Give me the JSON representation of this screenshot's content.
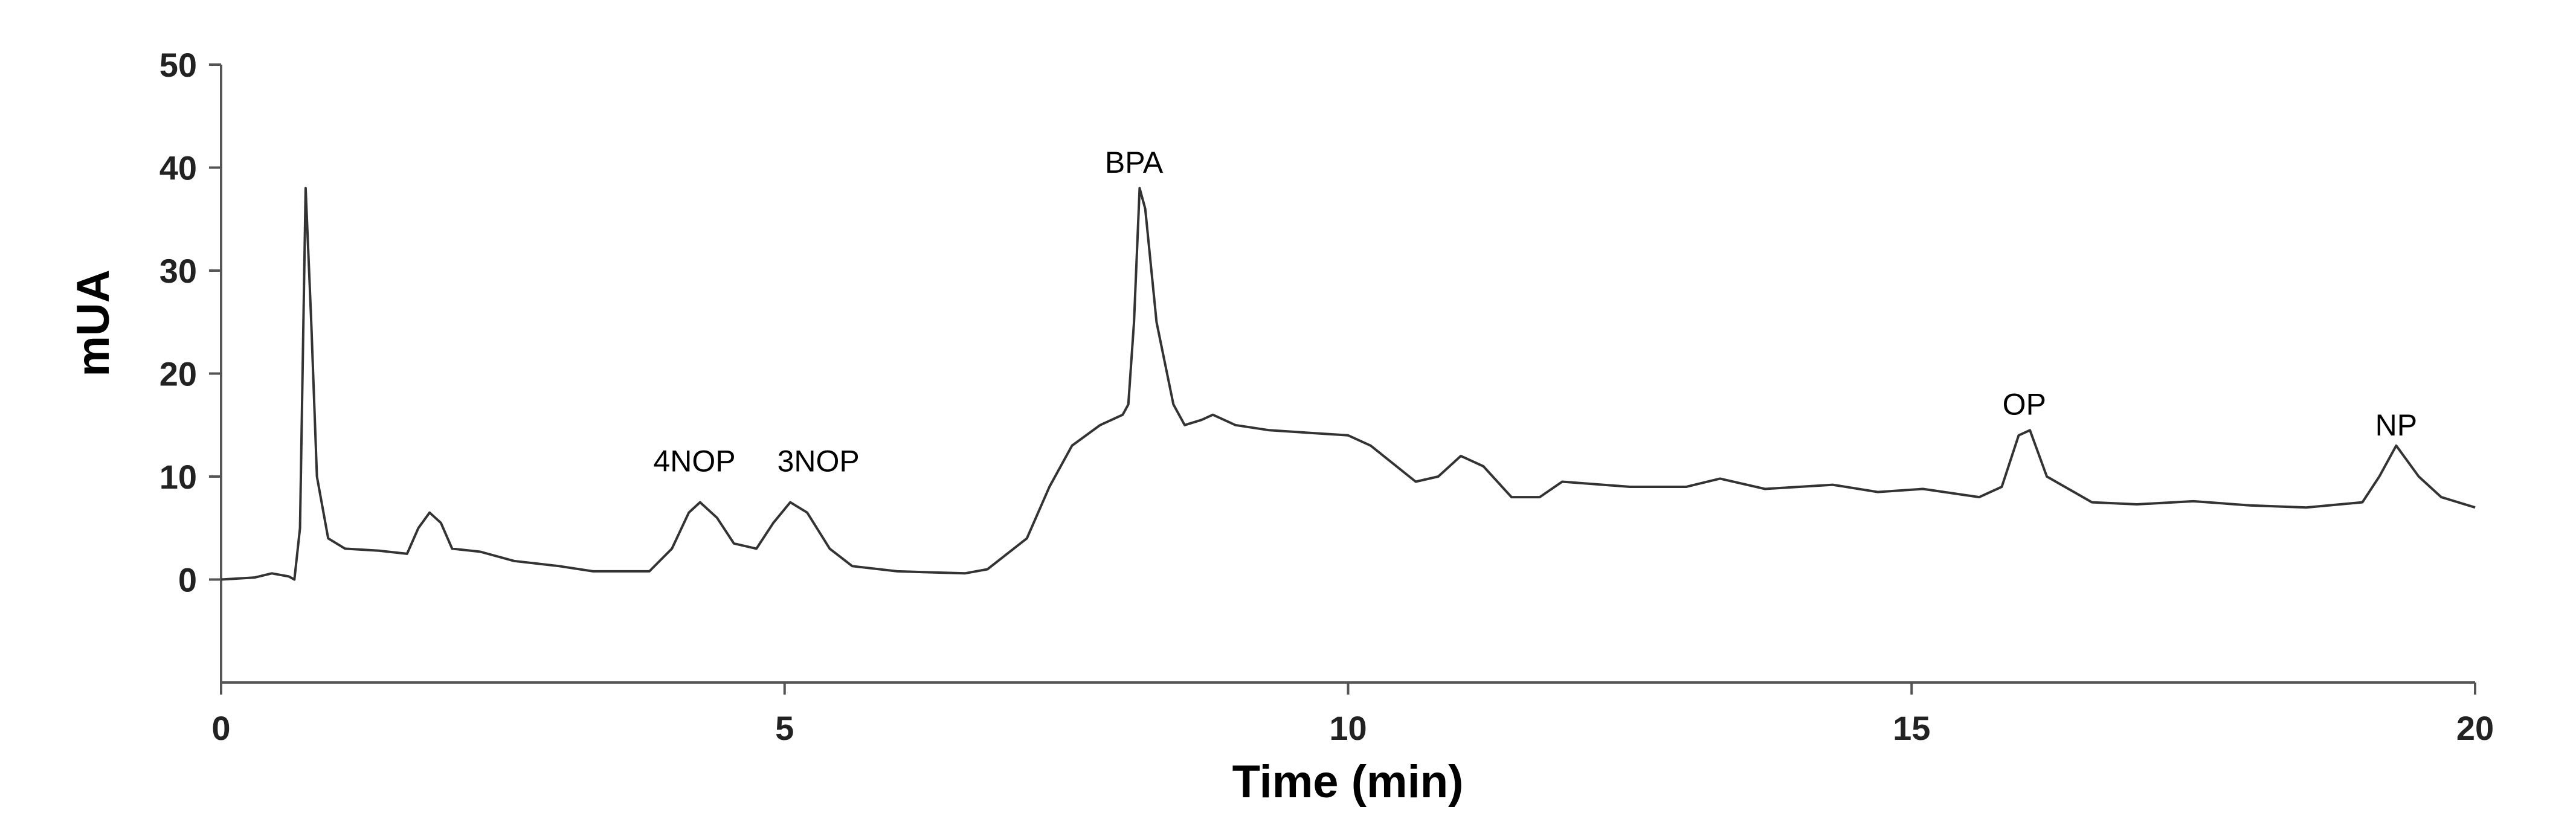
{
  "chart_data": {
    "type": "line",
    "xlabel": "Time (min)",
    "ylabel": "mUA",
    "xlim": [
      0,
      20
    ],
    "ylim": [
      -10,
      50
    ],
    "xticks": [
      0,
      5,
      10,
      15,
      20
    ],
    "yticks": [
      0,
      10,
      20,
      30,
      40,
      50
    ],
    "grid": false,
    "series": [
      {
        "color": "#333333",
        "x": [
          0,
          0.3,
          0.45,
          0.6,
          0.65,
          0.7,
          0.75,
          0.8,
          0.85,
          0.95,
          1.1,
          1.4,
          1.65,
          1.75,
          1.85,
          1.95,
          2.05,
          2.3,
          2.6,
          3.0,
          3.3,
          3.8,
          4.0,
          4.15,
          4.25,
          4.4,
          4.55,
          4.75,
          4.9,
          5.05,
          5.2,
          5.4,
          5.6,
          6.0,
          6.6,
          6.8,
          7.15,
          7.35,
          7.55,
          7.8,
          8.0,
          8.05,
          8.1,
          8.15,
          8.2,
          8.3,
          8.45,
          8.55,
          8.7,
          8.8,
          9.0,
          9.3,
          10.0,
          10.2,
          10.6,
          10.8,
          11.0,
          11.2,
          11.45,
          11.7,
          11.9,
          12.5,
          13.0,
          13.3,
          13.7,
          14.3,
          14.7,
          15.1,
          15.6,
          15.8,
          15.95,
          16.05,
          16.2,
          16.6,
          17.0,
          17.5,
          18.0,
          18.5,
          19.0,
          19.15,
          19.3,
          19.5,
          19.7,
          20
        ],
        "values": [
          0,
          0.2,
          0.6,
          0.3,
          0,
          5,
          38,
          25,
          10,
          4,
          3,
          2.8,
          2.5,
          5,
          6.5,
          5.5,
          3,
          2.7,
          1.8,
          1.3,
          0.8,
          0.8,
          3,
          6.5,
          7.5,
          6,
          3.5,
          3,
          5.5,
          7.5,
          6.5,
          3,
          1.3,
          0.8,
          0.6,
          1,
          4,
          9,
          13,
          15,
          16,
          17,
          25,
          38,
          36,
          25,
          17,
          15,
          15.5,
          16,
          15,
          14.5,
          14,
          13,
          9.5,
          10,
          12,
          11,
          8,
          8,
          9.5,
          9,
          9,
          9.8,
          8.8,
          9.2,
          8.5,
          8.8,
          8,
          9,
          14,
          14.5,
          10,
          7.5,
          7.3,
          7.6,
          7.2,
          7,
          7.5,
          10,
          13,
          10,
          8,
          7
        ]
      }
    ],
    "annotations": [
      {
        "text": "4NOP",
        "x": 4.2,
        "y": 10.5
      },
      {
        "text": "3NOP",
        "x": 5.3,
        "y": 10.5
      },
      {
        "text": "BPA",
        "x": 8.1,
        "y": 39.5
      },
      {
        "text": "OP",
        "x": 16.0,
        "y": 16
      },
      {
        "text": "NP",
        "x": 19.3,
        "y": 14
      }
    ]
  }
}
